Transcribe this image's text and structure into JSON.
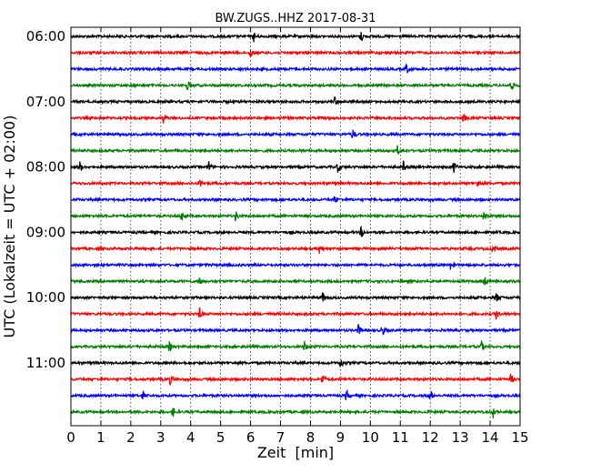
{
  "chart_data": {
    "type": "line",
    "title": "BW.ZUGS..HHZ 2017-08-31",
    "xlabel": "Zeit  [min]",
    "ylabel": "UTC (Lokalzeit = UTC + 02:00)",
    "xlim": [
      0,
      15
    ],
    "x_ticks": [
      "0",
      "1",
      "2",
      "3",
      "4",
      "5",
      "6",
      "7",
      "8",
      "9",
      "10",
      "11",
      "12",
      "13",
      "14",
      "15"
    ],
    "y_ticks": [
      {
        "label": "06:00",
        "trace": 0
      },
      {
        "label": "07:00",
        "trace": 4
      },
      {
        "label": "08:00",
        "trace": 8
      },
      {
        "label": "09:00",
        "trace": 12
      },
      {
        "label": "10:00",
        "trace": 16
      },
      {
        "label": "11:00",
        "trace": 20
      }
    ],
    "grid": "vertical dotted at each minute",
    "trace_minutes": 15,
    "colors": [
      "#000000",
      "#ff0000",
      "#0000ff",
      "#007f00"
    ],
    "series": [
      {
        "start": "06:00",
        "events": [
          6.1,
          9.7
        ]
      },
      {
        "start": "06:15",
        "events": [
          6.0
        ]
      },
      {
        "start": "06:30",
        "events": [
          11.2
        ]
      },
      {
        "start": "06:45",
        "events": [
          3.9,
          14.7
        ]
      },
      {
        "start": "07:00",
        "events": [
          8.8
        ]
      },
      {
        "start": "07:15",
        "events": [
          3.1,
          13.1
        ]
      },
      {
        "start": "07:30",
        "events": [
          9.4
        ]
      },
      {
        "start": "07:45",
        "events": [
          10.9
        ]
      },
      {
        "start": "08:00",
        "events": [
          0.3,
          4.6,
          8.9,
          11.1,
          12.8
        ]
      },
      {
        "start": "08:15",
        "events": [
          4.3,
          13.6
        ]
      },
      {
        "start": "08:30",
        "events": [
          8.8
        ]
      },
      {
        "start": "08:45",
        "events": [
          3.7,
          5.5,
          13.8
        ]
      },
      {
        "start": "09:00",
        "events": [
          9.7
        ]
      },
      {
        "start": "09:15",
        "events": [
          8.3,
          14.1
        ]
      },
      {
        "start": "09:30",
        "events": [
          12.7
        ]
      },
      {
        "start": "09:45",
        "events": [
          4.3,
          13.8
        ]
      },
      {
        "start": "10:00",
        "events": [
          8.4,
          14.2
        ]
      },
      {
        "start": "10:15",
        "events": [
          4.3,
          14.2
        ]
      },
      {
        "start": "10:30",
        "events": [
          9.6,
          10.4
        ]
      },
      {
        "start": "10:45",
        "events": [
          3.3,
          7.8,
          13.7
        ]
      },
      {
        "start": "11:00",
        "events": [
          9.0
        ]
      },
      {
        "start": "11:15",
        "events": [
          3.3,
          8.4,
          14.7
        ]
      },
      {
        "start": "11:30",
        "events": [
          2.4,
          9.2,
          12.0
        ]
      },
      {
        "start": "11:45",
        "events": [
          3.4,
          14.1
        ]
      }
    ]
  }
}
